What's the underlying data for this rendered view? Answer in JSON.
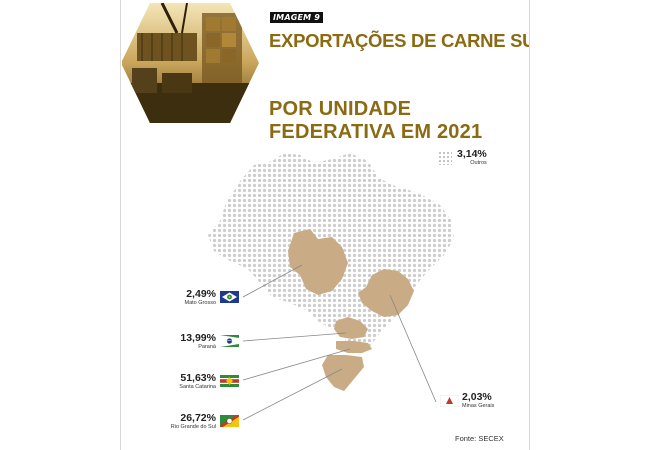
{
  "header": {
    "brand": "IMAGEM 9",
    "title": "EXPORTAÇÕES DE CARNE SUÍNA",
    "subtitle_line1": "POR UNIDADE",
    "subtitle_line2": "FEDERATIVA EM 2021"
  },
  "legend": {
    "outros_value": "3,14%",
    "outros_label": "Outros"
  },
  "states": [
    {
      "value": "2,49%",
      "name": "Mato Grosso",
      "flag_icon": "mato-grosso-flag-icon"
    },
    {
      "value": "13,99%",
      "name": "Paraná",
      "flag_icon": "parana-flag-icon"
    },
    {
      "value": "51,63%",
      "name": "Santa Catarina",
      "flag_icon": "santa-catarina-flag-icon"
    },
    {
      "value": "26,72%",
      "name": "Rio Grande do Sul",
      "flag_icon": "rio-grande-do-sul-flag-icon"
    },
    {
      "value": "2,03%",
      "name": "Minas Gerais",
      "flag_icon": "minas-gerais-flag-icon"
    }
  ],
  "footer": {
    "source": "Fonte: SECEX"
  },
  "colors": {
    "title": "#8a6a12",
    "highlight_state": "#c9ab86",
    "dot": "#cfcfcf"
  }
}
